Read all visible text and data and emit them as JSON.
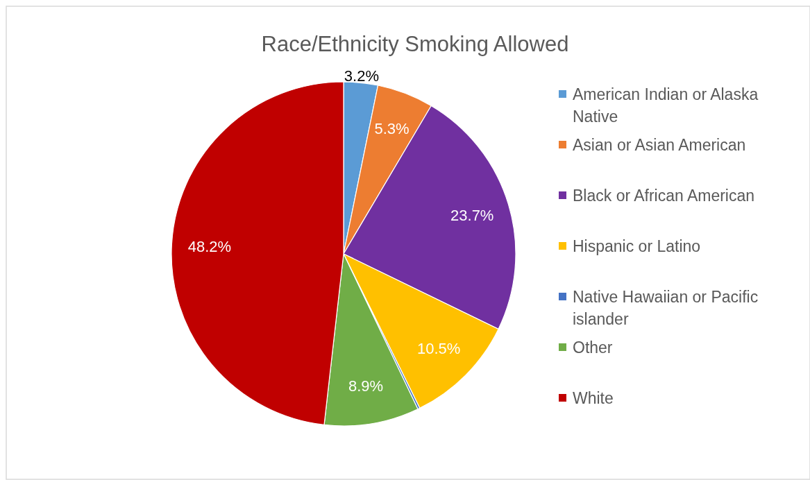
{
  "chart_data": {
    "type": "pie",
    "title": "Race/Ethnicity Smoking Allowed",
    "categories": [
      "American Indian or Alaska Native",
      "Asian or Asian American",
      "Black or African American",
      "Hispanic or Latino",
      "Native Hawaiian or Pacific islander",
      "Other",
      "White"
    ],
    "values": [
      3.2,
      5.3,
      23.7,
      10.5,
      0.2,
      8.9,
      48.2
    ],
    "colors": [
      "#5b9bd5",
      "#ed7d31",
      "#7030a0",
      "#ffc000",
      "#4472c4",
      "#70ad47",
      "#c00000"
    ],
    "value_labels": [
      "3.2%",
      "5.3%",
      "23.7%",
      "10.5%",
      null,
      "8.9%",
      "48.2%"
    ],
    "legend": "right"
  }
}
